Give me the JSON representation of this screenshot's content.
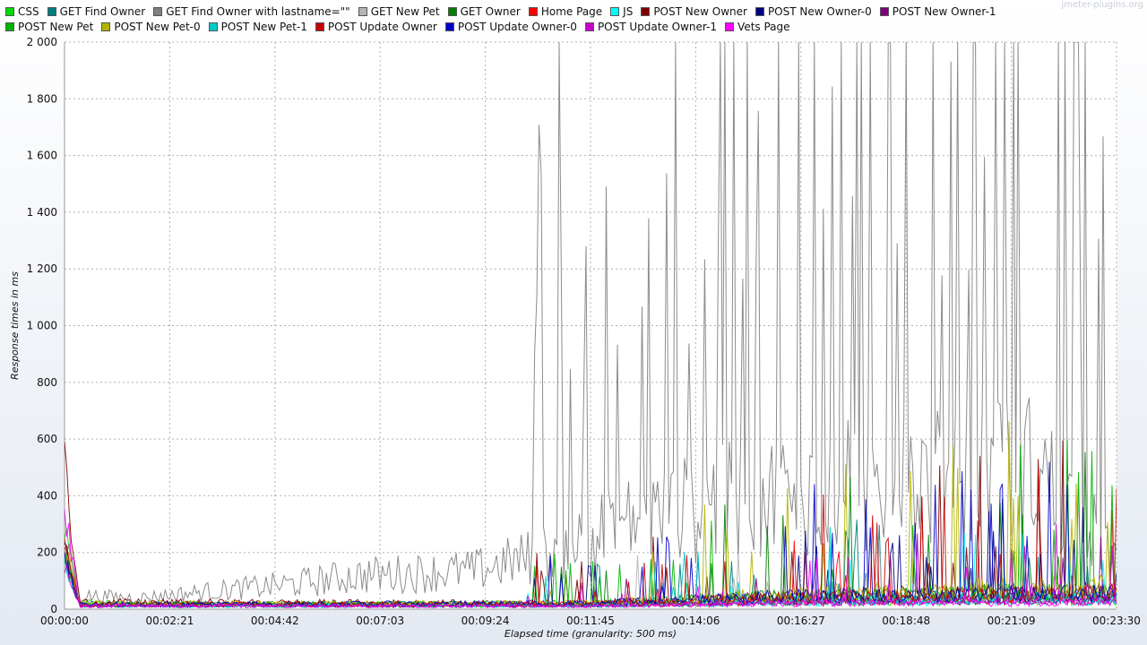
{
  "watermark": "jmeter-plugins.org",
  "chart_data": {
    "type": "line",
    "title": "",
    "xlabel": "Elapsed time (granularity: 500 ms)",
    "ylabel": "Response times in ms",
    "ylim": [
      0,
      2000
    ],
    "xlim_seconds": [
      0,
      1410
    ],
    "y_ticks": [
      0,
      200,
      400,
      600,
      800,
      1000,
      1200,
      1400,
      1600,
      1800,
      2000
    ],
    "y_tick_labels": [
      "0",
      "200",
      "400",
      "600",
      "800",
      "1 000",
      "1 200",
      "1 400",
      "1 600",
      "1 800",
      "2 000"
    ],
    "x_tick_labels": [
      "00:00:00",
      "00:02:21",
      "00:04:42",
      "00:07:03",
      "00:09:24",
      "00:11:45",
      "00:14:06",
      "00:16:27",
      "00:18:48",
      "00:21:09",
      "00:23:30"
    ],
    "grid": true,
    "legend_position": "top",
    "series": [
      {
        "name": "CSS",
        "color": "#00dd00",
        "profile": [
          [
            0,
            300
          ],
          [
            20,
            30
          ],
          [
            140,
            15
          ],
          [
            700,
            15
          ],
          [
            1000,
            30
          ],
          [
            1410,
            40
          ]
        ],
        "spike": 0.0
      },
      {
        "name": "GET Find Owner",
        "color": "#007f7f",
        "profile": [
          [
            0,
            220
          ],
          [
            20,
            25
          ],
          [
            700,
            20
          ],
          [
            1000,
            40
          ],
          [
            1410,
            50
          ]
        ],
        "spike": 0.05
      },
      {
        "name": "GET Find Owner with lastname=\"\"",
        "color": "#808080",
        "profile": [
          [
            0,
            280
          ],
          [
            20,
            60
          ],
          [
            100,
            50
          ],
          [
            200,
            80
          ],
          [
            300,
            110
          ],
          [
            400,
            150
          ],
          [
            550,
            170
          ],
          [
            650,
            250
          ],
          [
            750,
            380
          ],
          [
            900,
            480
          ],
          [
            1100,
            560
          ],
          [
            1300,
            620
          ],
          [
            1410,
            230
          ]
        ],
        "spike": 0.25
      },
      {
        "name": "GET New Pet",
        "color": "#b4b4b4",
        "profile": [
          [
            0,
            200
          ],
          [
            20,
            20
          ],
          [
            700,
            20
          ],
          [
            1000,
            40
          ],
          [
            1410,
            60
          ]
        ],
        "spike": 0.04
      },
      {
        "name": "GET Owner",
        "color": "#008000",
        "profile": [
          [
            0,
            200
          ],
          [
            20,
            20
          ],
          [
            700,
            25
          ],
          [
            1000,
            60
          ],
          [
            1410,
            80
          ]
        ],
        "spike": 0.06
      },
      {
        "name": "Home Page",
        "color": "#ff0000",
        "profile": [
          [
            0,
            240
          ],
          [
            20,
            20
          ],
          [
            700,
            20
          ],
          [
            1000,
            40
          ],
          [
            1410,
            50
          ]
        ],
        "spike": 0.03
      },
      {
        "name": "JS",
        "color": "#00ffff",
        "profile": [
          [
            0,
            200
          ],
          [
            20,
            15
          ],
          [
            700,
            15
          ],
          [
            1000,
            30
          ],
          [
            1410,
            40
          ]
        ],
        "spike": 0.03
      },
      {
        "name": "POST New Owner",
        "color": "#7f0000",
        "profile": [
          [
            0,
            540
          ],
          [
            20,
            30
          ],
          [
            700,
            25
          ],
          [
            1000,
            60
          ],
          [
            1410,
            80
          ]
        ],
        "spike": 0.06
      },
      {
        "name": "POST New Owner-0",
        "color": "#00007f",
        "profile": [
          [
            0,
            260
          ],
          [
            20,
            20
          ],
          [
            700,
            20
          ],
          [
            1000,
            50
          ],
          [
            1410,
            60
          ]
        ],
        "spike": 0.07
      },
      {
        "name": "POST New Owner-1",
        "color": "#7f007f",
        "profile": [
          [
            0,
            200
          ],
          [
            20,
            15
          ],
          [
            700,
            15
          ],
          [
            1000,
            30
          ],
          [
            1410,
            40
          ]
        ],
        "spike": 0.04
      },
      {
        "name": "POST New Pet",
        "color": "#00b400",
        "profile": [
          [
            0,
            220
          ],
          [
            20,
            20
          ],
          [
            700,
            25
          ],
          [
            1000,
            60
          ],
          [
            1410,
            80
          ]
        ],
        "spike": 0.07
      },
      {
        "name": "POST New Pet-0",
        "color": "#b4b400",
        "profile": [
          [
            0,
            260
          ],
          [
            20,
            25
          ],
          [
            700,
            25
          ],
          [
            1000,
            70
          ],
          [
            1410,
            100
          ]
        ],
        "spike": 0.07
      },
      {
        "name": "POST New Pet-1",
        "color": "#00c8c8",
        "profile": [
          [
            0,
            180
          ],
          [
            20,
            15
          ],
          [
            700,
            15
          ],
          [
            1000,
            40
          ],
          [
            1410,
            50
          ]
        ],
        "spike": 0.05
      },
      {
        "name": "POST Update Owner",
        "color": "#c80000",
        "profile": [
          [
            0,
            240
          ],
          [
            20,
            20
          ],
          [
            700,
            25
          ],
          [
            1000,
            50
          ],
          [
            1410,
            70
          ]
        ],
        "spike": 0.06
      },
      {
        "name": "POST Update Owner-0",
        "color": "#0000c8",
        "profile": [
          [
            0,
            220
          ],
          [
            20,
            20
          ],
          [
            700,
            25
          ],
          [
            1000,
            60
          ],
          [
            1410,
            70
          ]
        ],
        "spike": 0.08
      },
      {
        "name": "POST Update Owner-1",
        "color": "#c800c8",
        "profile": [
          [
            0,
            180
          ],
          [
            20,
            15
          ],
          [
            700,
            15
          ],
          [
            1000,
            30
          ],
          [
            1410,
            40
          ]
        ],
        "spike": 0.04
      },
      {
        "name": "Vets Page",
        "color": "#ff00ff",
        "profile": [
          [
            0,
            400
          ],
          [
            20,
            15
          ],
          [
            700,
            12
          ],
          [
            1000,
            25
          ],
          [
            1410,
            30
          ]
        ],
        "spike": 0.03
      }
    ]
  }
}
